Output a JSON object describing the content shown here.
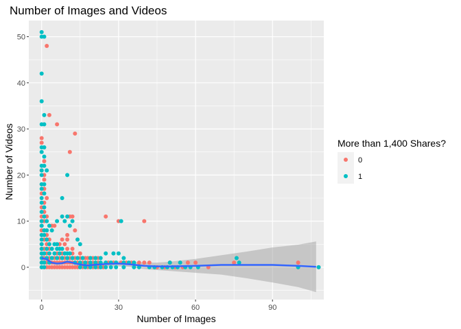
{
  "chart_data": {
    "type": "scatter",
    "title": "Number of Images and Videos",
    "xlabel": "Number of Images",
    "ylabel": "Number of Videos",
    "xlim": [
      -5,
      110
    ],
    "ylim": [
      -7,
      53.5
    ],
    "x_ticks": [
      0,
      30,
      60,
      90
    ],
    "y_ticks": [
      0,
      10,
      20,
      30,
      40,
      50
    ],
    "grid": true,
    "legend": {
      "title": "More than 1,400 Shares?",
      "placement": "right",
      "entries": [
        {
          "label": "0",
          "color": "#F8766D"
        },
        {
          "label": "1",
          "color": "#00BFC4"
        }
      ]
    },
    "series": [
      {
        "name": "0",
        "color": "#F8766D",
        "points": [
          [
            2,
            48
          ],
          [
            3,
            33
          ],
          [
            13,
            29
          ],
          [
            6,
            31
          ],
          [
            11,
            25
          ],
          [
            0,
            28
          ],
          [
            0,
            27
          ],
          [
            1,
            23
          ],
          [
            0,
            21
          ],
          [
            1,
            20
          ],
          [
            1,
            19
          ],
          [
            0,
            18
          ],
          [
            1,
            17
          ],
          [
            0,
            16
          ],
          [
            2,
            15
          ],
          [
            1,
            14
          ],
          [
            0,
            13
          ],
          [
            1,
            12
          ],
          [
            0,
            11
          ],
          [
            2,
            11
          ],
          [
            0,
            10
          ],
          [
            1,
            10
          ],
          [
            0,
            9
          ],
          [
            4,
            9
          ],
          [
            5,
            9
          ],
          [
            0,
            8
          ],
          [
            1,
            8
          ],
          [
            0,
            7
          ],
          [
            2,
            7
          ],
          [
            1,
            6
          ],
          [
            3,
            6
          ],
          [
            0,
            5
          ],
          [
            2,
            5
          ],
          [
            0,
            4
          ],
          [
            1,
            4
          ],
          [
            3,
            4
          ],
          [
            0,
            3
          ],
          [
            2,
            3
          ],
          [
            1,
            2
          ],
          [
            3,
            2
          ],
          [
            0,
            1
          ],
          [
            2,
            1
          ],
          [
            0,
            0
          ],
          [
            1,
            0
          ],
          [
            2,
            0
          ],
          [
            3,
            0
          ],
          [
            4,
            0
          ],
          [
            5,
            0
          ],
          [
            6,
            0
          ],
          [
            7,
            0
          ],
          [
            8,
            0
          ],
          [
            9,
            0
          ],
          [
            10,
            0
          ],
          [
            11,
            0
          ],
          [
            12,
            0
          ],
          [
            13,
            0
          ],
          [
            14,
            0
          ],
          [
            16,
            0
          ],
          [
            18,
            0
          ],
          [
            20,
            0
          ],
          [
            22,
            0
          ],
          [
            24,
            0
          ],
          [
            4,
            1
          ],
          [
            5,
            1
          ],
          [
            6,
            1
          ],
          [
            7,
            1
          ],
          [
            8,
            1
          ],
          [
            9,
            1
          ],
          [
            10,
            1
          ],
          [
            11,
            1
          ],
          [
            12,
            1
          ],
          [
            14,
            1
          ],
          [
            16,
            1
          ],
          [
            18,
            1
          ],
          [
            20,
            1
          ],
          [
            22,
            1
          ],
          [
            5,
            2
          ],
          [
            6,
            2
          ],
          [
            7,
            2
          ],
          [
            9,
            2
          ],
          [
            11,
            2
          ],
          [
            13,
            2
          ],
          [
            15,
            2
          ],
          [
            17,
            2
          ],
          [
            6,
            3
          ],
          [
            8,
            3
          ],
          [
            10,
            4
          ],
          [
            12,
            4
          ],
          [
            7,
            5
          ],
          [
            9,
            5
          ],
          [
            8,
            6
          ],
          [
            10,
            6
          ],
          [
            14,
            6
          ],
          [
            11,
            11
          ],
          [
            12,
            11
          ],
          [
            25,
            11
          ],
          [
            30,
            10
          ],
          [
            40,
            10
          ],
          [
            10,
            7
          ],
          [
            13,
            8
          ],
          [
            15,
            3
          ],
          [
            12,
            3
          ],
          [
            18,
            2
          ],
          [
            20,
            2
          ],
          [
            22,
            2
          ],
          [
            26,
            1
          ],
          [
            28,
            1
          ],
          [
            31,
            1
          ],
          [
            33,
            1
          ],
          [
            35,
            1
          ],
          [
            38,
            1
          ],
          [
            40,
            1
          ],
          [
            42,
            1
          ],
          [
            45,
            0
          ],
          [
            48,
            0
          ],
          [
            50,
            1
          ],
          [
            52,
            0
          ],
          [
            55,
            0
          ],
          [
            57,
            1
          ],
          [
            60,
            1
          ],
          [
            65,
            0
          ],
          [
            75,
            1
          ],
          [
            100,
            1
          ],
          [
            100,
            0
          ],
          [
            108,
            0
          ]
        ]
      },
      {
        "name": "1",
        "color": "#00BFC4",
        "points": [
          [
            0,
            51
          ],
          [
            0,
            50
          ],
          [
            1,
            50
          ],
          [
            0,
            42
          ],
          [
            0,
            36
          ],
          [
            1,
            33
          ],
          [
            0,
            31
          ],
          [
            1,
            31
          ],
          [
            0,
            26
          ],
          [
            1,
            26
          ],
          [
            0,
            25
          ],
          [
            1,
            24
          ],
          [
            0,
            22
          ],
          [
            1,
            22
          ],
          [
            0,
            21
          ],
          [
            2,
            21
          ],
          [
            0,
            20
          ],
          [
            0,
            18
          ],
          [
            1,
            18
          ],
          [
            0,
            17
          ],
          [
            1,
            16
          ],
          [
            0,
            15
          ],
          [
            0,
            14
          ],
          [
            1,
            13
          ],
          [
            0,
            12
          ],
          [
            1,
            11
          ],
          [
            0,
            10
          ],
          [
            2,
            10
          ],
          [
            0,
            9
          ],
          [
            3,
            9
          ],
          [
            1,
            8
          ],
          [
            2,
            8
          ],
          [
            0,
            7
          ],
          [
            1,
            7
          ],
          [
            0,
            6
          ],
          [
            2,
            6
          ],
          [
            0,
            5
          ],
          [
            3,
            5
          ],
          [
            5,
            5
          ],
          [
            6,
            5
          ],
          [
            0,
            4
          ],
          [
            2,
            4
          ],
          [
            4,
            4
          ],
          [
            6,
            4
          ],
          [
            7,
            4
          ],
          [
            8,
            4
          ],
          [
            0,
            3
          ],
          [
            1,
            3
          ],
          [
            3,
            3
          ],
          [
            5,
            3
          ],
          [
            7,
            3
          ],
          [
            9,
            3
          ],
          [
            10,
            3
          ],
          [
            11,
            3
          ],
          [
            0,
            2
          ],
          [
            2,
            2
          ],
          [
            4,
            2
          ],
          [
            6,
            2
          ],
          [
            8,
            2
          ],
          [
            10,
            2
          ],
          [
            12,
            2
          ],
          [
            14,
            2
          ],
          [
            16,
            2
          ],
          [
            19,
            2
          ],
          [
            21,
            2
          ],
          [
            23,
            2
          ],
          [
            0,
            1
          ],
          [
            1,
            1
          ],
          [
            3,
            1
          ],
          [
            13,
            1
          ],
          [
            15,
            1
          ],
          [
            17,
            1
          ],
          [
            19,
            1
          ],
          [
            21,
            1
          ],
          [
            23,
            1
          ],
          [
            25,
            1
          ],
          [
            27,
            1
          ],
          [
            29,
            1
          ],
          [
            32,
            1
          ],
          [
            34,
            1
          ],
          [
            36,
            1
          ],
          [
            0,
            0
          ],
          [
            1,
            0
          ],
          [
            15,
            0
          ],
          [
            17,
            0
          ],
          [
            19,
            0
          ],
          [
            21,
            0
          ],
          [
            23,
            0
          ],
          [
            25,
            0
          ],
          [
            27,
            0
          ],
          [
            29,
            0
          ],
          [
            32,
            0
          ],
          [
            36,
            0
          ],
          [
            38,
            0
          ],
          [
            42,
            0
          ],
          [
            44,
            0
          ],
          [
            47,
            0
          ],
          [
            49,
            0
          ],
          [
            51,
            0
          ],
          [
            53,
            0
          ],
          [
            56,
            0
          ],
          [
            58,
            0
          ],
          [
            61,
            0
          ],
          [
            10,
            20
          ],
          [
            8,
            15
          ],
          [
            9,
            10
          ],
          [
            12,
            10
          ],
          [
            14,
            6
          ],
          [
            15,
            5
          ],
          [
            25,
            3
          ],
          [
            30,
            3
          ],
          [
            31,
            10
          ],
          [
            28,
            3
          ],
          [
            32,
            2
          ],
          [
            50,
            1
          ],
          [
            54,
            1
          ],
          [
            76,
            2
          ],
          [
            77,
            1
          ],
          [
            100,
            0
          ],
          [
            108,
            0
          ],
          [
            6,
            10
          ],
          [
            8,
            11
          ],
          [
            10,
            11
          ],
          [
            11,
            9
          ],
          [
            4,
            8
          ]
        ]
      }
    ],
    "smooth": {
      "color": "#3366FF",
      "points": [
        [
          0,
          2.0
        ],
        [
          2,
          1.7
        ],
        [
          4,
          1.0
        ],
        [
          6,
          0.8
        ],
        [
          8,
          0.9
        ],
        [
          10,
          1.2
        ],
        [
          12,
          1.0
        ],
        [
          14,
          0.7
        ],
        [
          16,
          0.5
        ],
        [
          18,
          0.4
        ],
        [
          20,
          0.5
        ],
        [
          25,
          0.7
        ],
        [
          30,
          0.8
        ],
        [
          35,
          0.6
        ],
        [
          40,
          0.3
        ],
        [
          45,
          0.2
        ],
        [
          50,
          0.2
        ],
        [
          60,
          0.3
        ],
        [
          70,
          0.5
        ],
        [
          80,
          0.5
        ],
        [
          90,
          0.5
        ],
        [
          100,
          0.3
        ],
        [
          107,
          0.1
        ]
      ],
      "band_lower": [
        [
          0,
          1.3
        ],
        [
          2,
          1.2
        ],
        [
          4,
          0.6
        ],
        [
          6,
          0.4
        ],
        [
          8,
          0.5
        ],
        [
          10,
          0.8
        ],
        [
          12,
          0.6
        ],
        [
          14,
          0.3
        ],
        [
          16,
          0.1
        ],
        [
          18,
          0.0
        ],
        [
          20,
          0.1
        ],
        [
          25,
          0.2
        ],
        [
          30,
          0.2
        ],
        [
          35,
          0.0
        ],
        [
          40,
          -0.4
        ],
        [
          45,
          -0.6
        ],
        [
          50,
          -0.8
        ],
        [
          60,
          -1.2
        ],
        [
          70,
          -1.6
        ],
        [
          80,
          -2.4
        ],
        [
          90,
          -3.3
        ],
        [
          100,
          -4.3
        ],
        [
          107,
          -5.4
        ]
      ],
      "band_upper": [
        [
          0,
          2.7
        ],
        [
          2,
          2.2
        ],
        [
          4,
          1.4
        ],
        [
          6,
          1.2
        ],
        [
          8,
          1.3
        ],
        [
          10,
          1.6
        ],
        [
          12,
          1.4
        ],
        [
          14,
          1.1
        ],
        [
          16,
          0.9
        ],
        [
          18,
          0.8
        ],
        [
          20,
          0.9
        ],
        [
          25,
          1.2
        ],
        [
          30,
          1.4
        ],
        [
          35,
          1.2
        ],
        [
          40,
          1.0
        ],
        [
          45,
          1.0
        ],
        [
          50,
          1.2
        ],
        [
          60,
          1.8
        ],
        [
          70,
          2.6
        ],
        [
          80,
          3.4
        ],
        [
          90,
          4.3
        ],
        [
          100,
          4.9
        ],
        [
          107,
          5.6
        ]
      ]
    }
  }
}
